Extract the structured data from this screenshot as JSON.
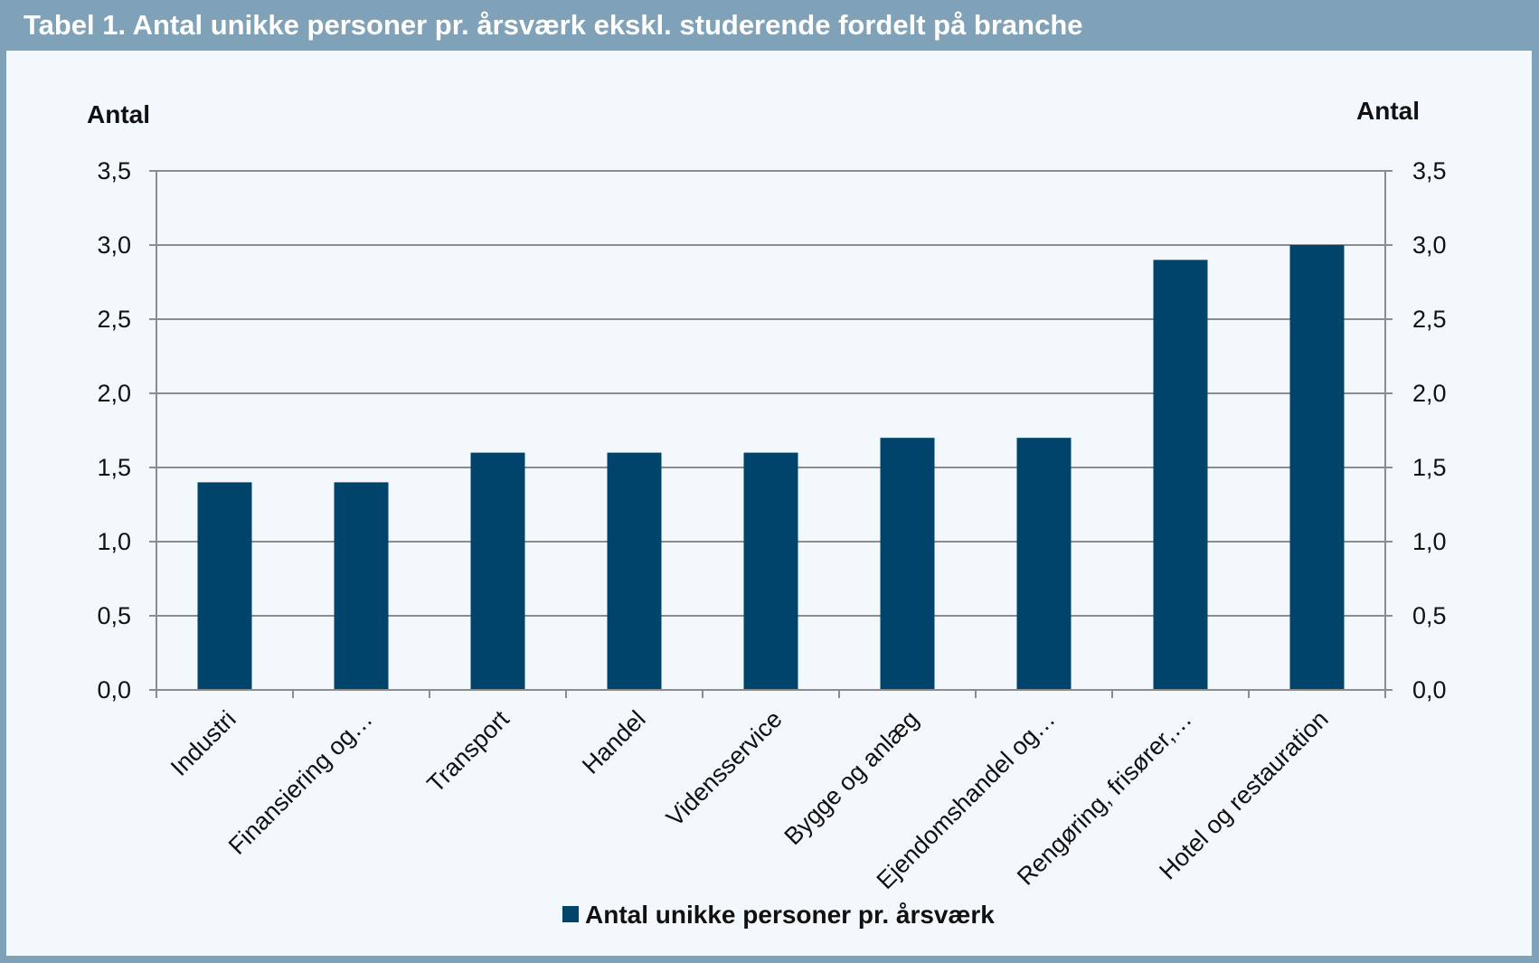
{
  "title": "Tabel 1. Antal unikke personer pr. årsværk ekskl. studerende fordelt på branche",
  "colors": {
    "frame": "#7fa2b8",
    "panel": "#f3f8fc",
    "bar": "#00446b",
    "grid": "#8c8c8c"
  },
  "chart_data": {
    "type": "bar",
    "categories": [
      "Industri",
      "Finansiering og…",
      "Transport",
      "Handel",
      "Vidensservice",
      "Bygge og anlæg",
      "Ejendomshandel og…",
      "Rengøring, frisører,…",
      "Hotel og restauration"
    ],
    "series": [
      {
        "name": "Antal unikke personer pr. årsværk",
        "values": [
          1.4,
          1.4,
          1.6,
          1.6,
          1.6,
          1.7,
          1.7,
          2.9,
          3.0
        ]
      }
    ],
    "ylabel_left": "Antal",
    "ylabel_right": "Antal",
    "ylim": [
      0,
      3.5
    ],
    "yticks": [
      "0,0",
      "0,5",
      "1,0",
      "1,5",
      "2,0",
      "2,5",
      "3,0",
      "3,5"
    ],
    "grid": true,
    "legend_position": "bottom"
  }
}
